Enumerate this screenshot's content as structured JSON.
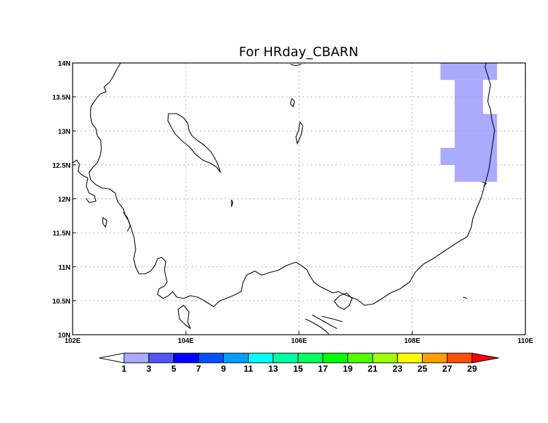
{
  "title": "For HRday_CBARN",
  "map": {
    "lon_range": [
      102,
      110
    ],
    "lat_range": [
      10,
      14
    ],
    "lon_ticks": [
      102,
      104,
      106,
      108,
      110
    ],
    "lat_ticks": [
      10,
      10.5,
      11,
      11.5,
      12,
      12.5,
      13,
      13.5,
      14
    ],
    "lon_tick_labels": [
      "102E",
      "104E",
      "106E",
      "108E",
      "110E"
    ],
    "lat_tick_labels": [
      "10N",
      "10.5N",
      "11N",
      "11.5N",
      "12N",
      "12.5N",
      "13N",
      "13.5N",
      "14N"
    ],
    "grid": true,
    "shaded_value_color": "#aaaaff",
    "shaded_cells": [
      {
        "lon": [
          108.5,
          109.5
        ],
        "lat": [
          13.75,
          14.0
        ]
      },
      {
        "lon": [
          108.75,
          109.25
        ],
        "lat": [
          13.25,
          13.75
        ]
      },
      {
        "lon": [
          108.75,
          109.5
        ],
        "lat": [
          12.75,
          13.25
        ]
      },
      {
        "lon": [
          108.5,
          109.5
        ],
        "lat": [
          12.5,
          12.75
        ]
      },
      {
        "lon": [
          108.75,
          109.5
        ],
        "lat": [
          12.25,
          12.5
        ]
      }
    ]
  },
  "colorbar": {
    "labels": [
      "1",
      "3",
      "5",
      "7",
      "9",
      "11",
      "13",
      "15",
      "17",
      "19",
      "21",
      "23",
      "25",
      "27",
      "29"
    ],
    "colors": [
      "#ffffff",
      "#aaaaff",
      "#5555ff",
      "#0000ff",
      "#0050ff",
      "#00a0ff",
      "#00ffff",
      "#00ffa0",
      "#00ff60",
      "#00ff00",
      "#50ff00",
      "#a0ff00",
      "#ffff00",
      "#ffa000",
      "#ff5000",
      "#ff0000"
    ]
  }
}
